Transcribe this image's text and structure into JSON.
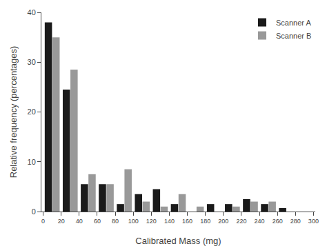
{
  "chart_data": {
    "type": "histogram",
    "xlabel": "Calibrated Mass (mg)",
    "ylabel": "Relative frequency (percentages)",
    "bins": [
      0,
      20,
      40,
      60,
      80,
      100,
      120,
      140,
      160,
      180,
      200,
      220,
      240,
      260,
      280,
      300
    ],
    "series": [
      {
        "name": "Scanner A",
        "color": "#1a1a1a",
        "values": [
          38.0,
          24.5,
          5.5,
          5.5,
          1.5,
          3.5,
          4.5,
          1.5,
          0.0,
          1.5,
          1.5,
          2.5,
          1.5,
          0.7,
          0.0
        ]
      },
      {
        "name": "Scanner B",
        "color": "#999999",
        "values": [
          35.0,
          28.5,
          7.5,
          5.5,
          8.5,
          2.0,
          1.0,
          3.5,
          1.0,
          0.0,
          1.0,
          2.0,
          2.0,
          0.0,
          0.0
        ]
      }
    ],
    "xlim": [
      -2,
      302
    ],
    "xticks": [
      0,
      20,
      40,
      60,
      80,
      100,
      120,
      140,
      160,
      180,
      200,
      220,
      240,
      260,
      280,
      300
    ],
    "ylim": [
      0,
      40
    ],
    "yticks": [
      0,
      10,
      20,
      30,
      40
    ],
    "grid": false,
    "legend": "upper right"
  }
}
